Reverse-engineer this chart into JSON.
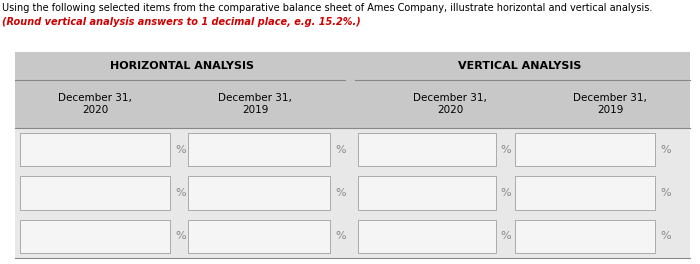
{
  "title_line1": "Using the following selected items from the comparative balance sheet of Ames Company, illustrate horizontal and vertical analysis.",
  "title_line2": "(Round vertical analysis answers to 1 decimal place, e.g. 15.2%.)",
  "horiz_label": "HORIZONTAL ANALYSIS",
  "vert_label": "VERTICAL ANALYSIS",
  "col_headers": [
    "December 31,\n2020",
    "December 31,\n2019",
    "December 31,\n2020",
    "December 31,\n2019"
  ],
  "n_rows": 3,
  "bg_color": "#ffffff",
  "table_bg": "#e8e8e8",
  "header_bg": "#c8c8c8",
  "box_color": "#f5f5f5",
  "box_border": "#aaaaaa",
  "text_color": "#000000",
  "title_color": "#000000",
  "italic_color": "#cc0000",
  "percent_color": "#888888",
  "figwidth": 7.0,
  "figheight": 2.64,
  "dpi": 100
}
